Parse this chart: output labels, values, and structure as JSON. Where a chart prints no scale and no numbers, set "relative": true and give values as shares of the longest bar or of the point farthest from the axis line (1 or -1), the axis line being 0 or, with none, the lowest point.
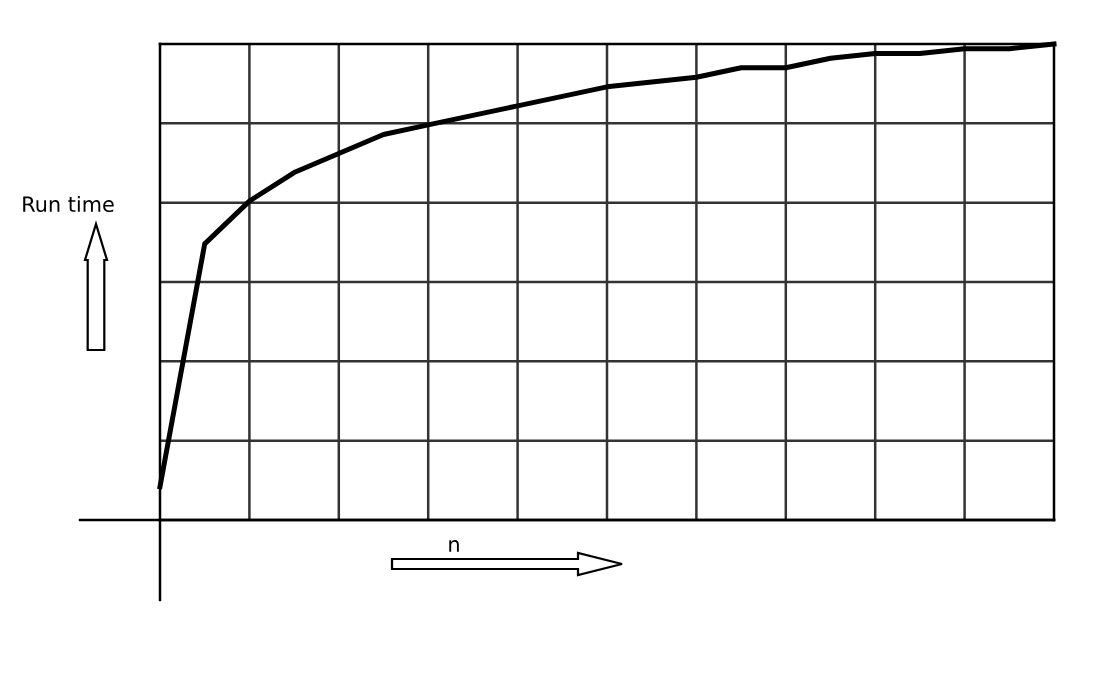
{
  "chart_data": {
    "type": "line",
    "relative": true,
    "grid": true,
    "color": "#000000",
    "marker": "none",
    "line_style": "solid",
    "categories": [
      null,
      null,
      null,
      null,
      null,
      null,
      null,
      null,
      null,
      null,
      null,
      null,
      null,
      null,
      null,
      null,
      null,
      null,
      null,
      null,
      null
    ],
    "values": [
      0.07,
      0.58,
      0.67,
      0.73,
      0.77,
      0.81,
      0.83,
      0.85,
      0.87,
      0.89,
      0.91,
      0.92,
      0.93,
      0.95,
      0.95,
      0.97,
      0.98,
      0.98,
      0.99,
      0.99,
      1
    ],
    "annotations": [
      "Run time",
      "n"
    ]
  }
}
